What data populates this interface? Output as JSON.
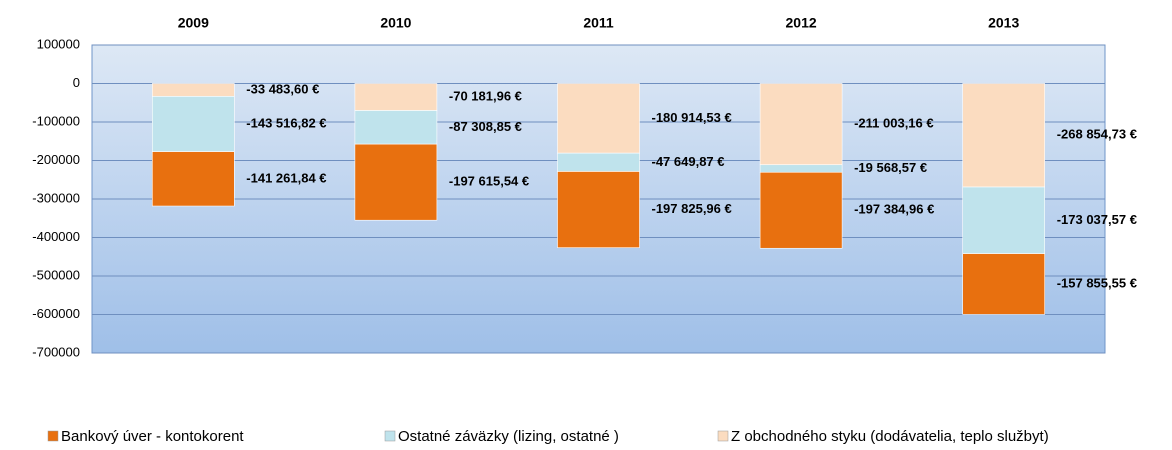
{
  "chart_data": {
    "type": "stacked-bar",
    "categories": [
      "2009",
      "2010",
      "2011",
      "2012",
      "2013"
    ],
    "series": [
      {
        "name": "Bankový úver - kontokorent",
        "color": "#e8700f",
        "values": [
          -141261.84,
          -197615.54,
          -197825.96,
          -197384.96,
          -157855.55
        ],
        "value_labels": [
          "-141 261,84 €",
          "-197 615,54 €",
          "-197 825,96 €",
          "-197 384,96 €",
          "-157 855,55 €"
        ]
      },
      {
        "name": "Ostatné záväzky (lizing, ostatné )",
        "color": "#bfe3ec",
        "values": [
          -143516.82,
          -87308.85,
          -47649.87,
          -19568.57,
          -173037.57
        ],
        "value_labels": [
          "-143 516,82 €",
          "-87 308,85 €",
          "-47 649,87 €",
          "-19 568,57 €",
          "-173 037,57 €"
        ]
      },
      {
        "name": "Z obchodného styku (dodávatelia, teplo službyt)",
        "color": "#fbdcc0",
        "values": [
          -33483.6,
          -70181.96,
          -180914.53,
          -211003.16,
          -268854.73
        ],
        "value_labels": [
          "-33 483,60 €",
          "-70 181,96 €",
          "-180 914,53 €",
          "-211 003,16 €",
          "-268 854,73 €"
        ]
      }
    ],
    "ylim": [
      -700000,
      100000
    ],
    "yticks": [
      100000,
      0,
      -100000,
      -200000,
      -300000,
      -400000,
      -500000,
      -600000,
      -700000
    ],
    "grid": true
  }
}
